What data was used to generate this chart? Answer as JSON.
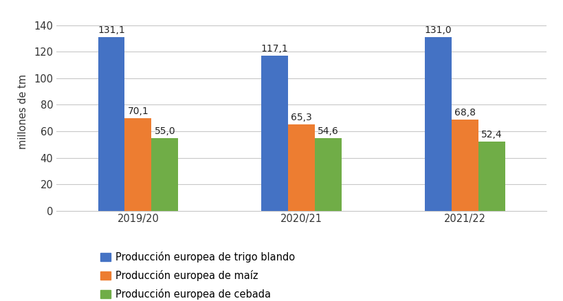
{
  "categories": [
    "2019/20",
    "2020/21",
    "2021/22"
  ],
  "series": {
    "Producción europea de trigo blando": [
      131.1,
      117.1,
      131.0
    ],
    "Producción europea de maíz": [
      70.1,
      65.3,
      68.8
    ],
    "Producción europea de cebada": [
      55.0,
      54.6,
      52.4
    ]
  },
  "colors": [
    "#4472C4",
    "#ED7D31",
    "#70AD47"
  ],
  "ylabel": "millones de tm",
  "ylim": [
    0,
    150
  ],
  "yticks": [
    0,
    20,
    40,
    60,
    80,
    100,
    120,
    140
  ],
  "bar_width": 0.18,
  "label_fontsize": 10,
  "tick_fontsize": 10.5,
  "legend_fontsize": 10.5,
  "ylabel_fontsize": 10.5,
  "background_color": "#ffffff",
  "grid_color": "#c8c8c8"
}
